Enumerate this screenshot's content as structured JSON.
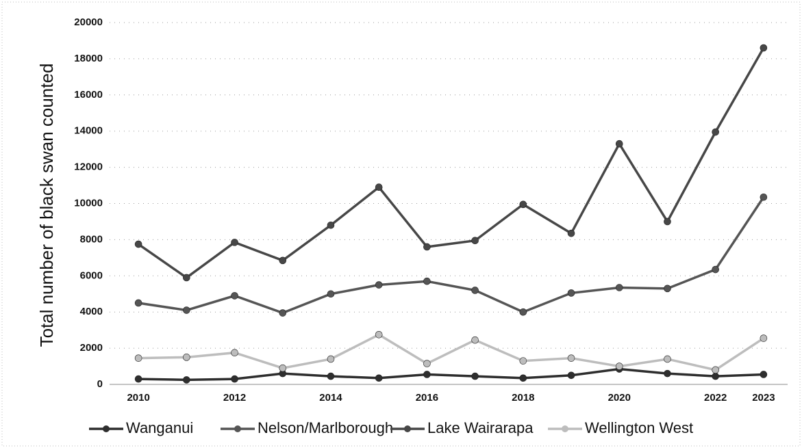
{
  "chart_data": {
    "type": "line",
    "ylabel": "Total number of black swan counted",
    "x": [
      2010,
      2011,
      2012,
      2013,
      2014,
      2015,
      2016,
      2017,
      2018,
      2019,
      2020,
      2021,
      2022,
      2023
    ],
    "xlim": [
      2009.4,
      2023.5
    ],
    "xticks": [
      2010,
      2012,
      2014,
      2016,
      2018,
      2020,
      2022,
      2023
    ],
    "ylim": [
      0,
      20000
    ],
    "yticks": [
      0,
      2000,
      4000,
      6000,
      8000,
      10000,
      12000,
      14000,
      16000,
      18000,
      20000
    ],
    "grid": true,
    "legend": "bottom",
    "series": [
      {
        "name": "Wanganui",
        "color": "#2e2e2e",
        "values": [
          300,
          250,
          300,
          600,
          450,
          350,
          550,
          450,
          350,
          500,
          850,
          600,
          450,
          550
        ]
      },
      {
        "name": "Nelson/Marlborough",
        "color": "#555555",
        "values": [
          4500,
          4100,
          4900,
          3950,
          5000,
          5500,
          5700,
          5200,
          4000,
          5050,
          5350,
          5300,
          6350,
          10350
        ]
      },
      {
        "name": "Lake Wairarapa",
        "color": "#474747",
        "values": [
          7750,
          5900,
          7850,
          6850,
          8800,
          10900,
          7600,
          7950,
          9950,
          8350,
          13300,
          9000,
          13950,
          18600
        ]
      },
      {
        "name": "Wellington West",
        "color": "#bdbdbd",
        "values": [
          1450,
          1500,
          1750,
          900,
          1400,
          2750,
          1150,
          2450,
          1300,
          1450,
          1000,
          1400,
          800,
          2550
        ]
      }
    ]
  }
}
